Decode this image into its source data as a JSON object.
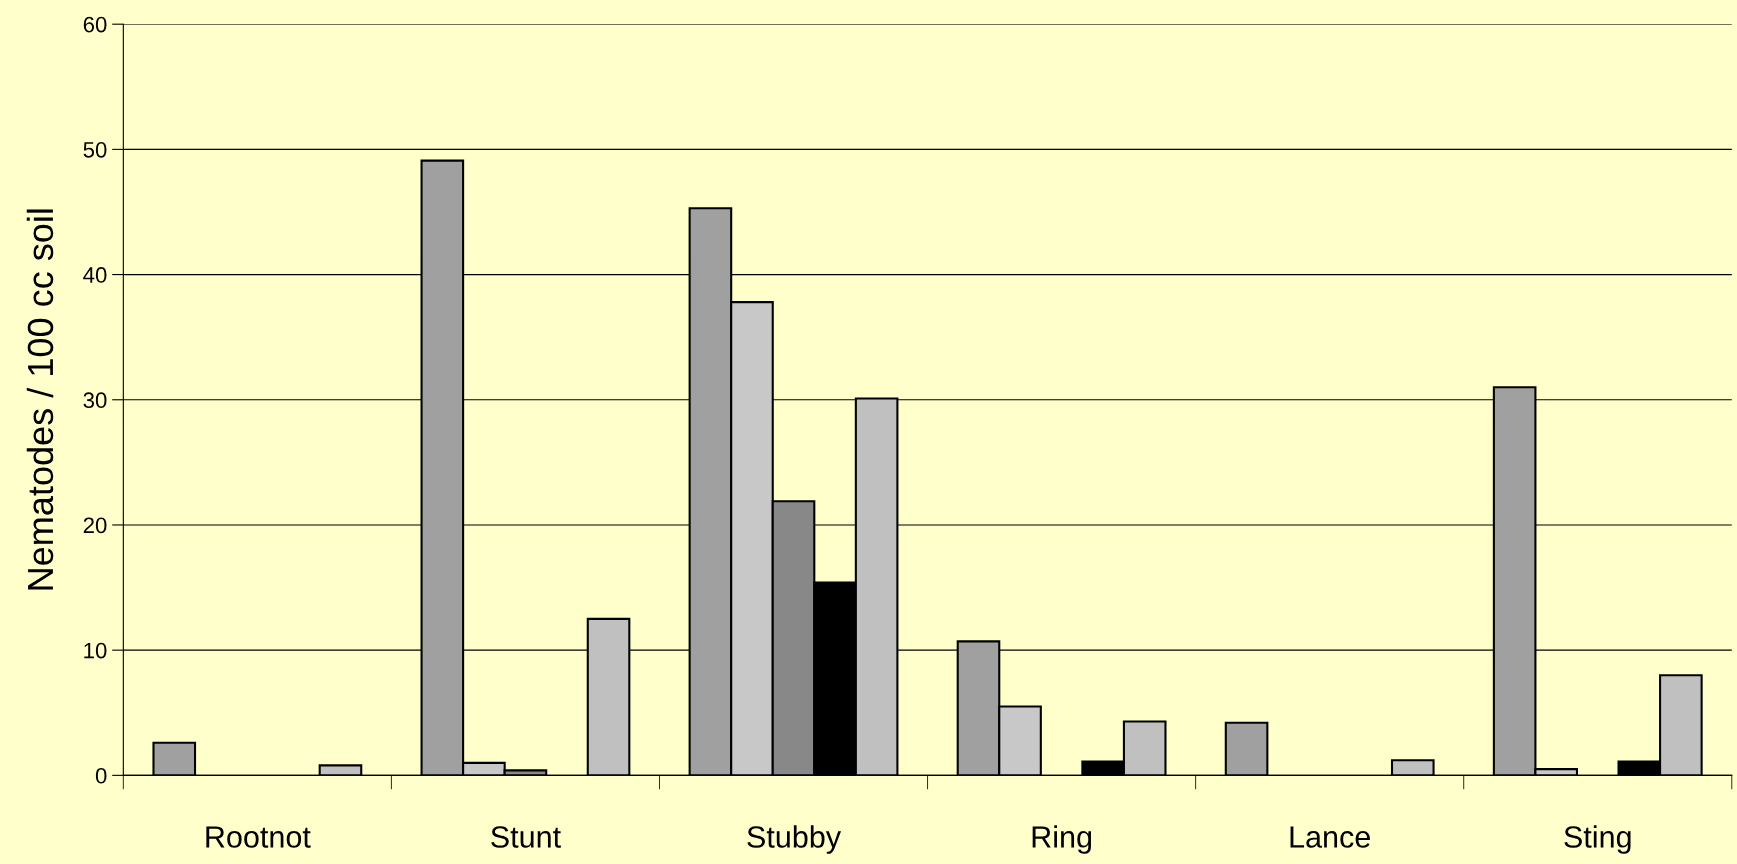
{
  "chart_data": {
    "type": "bar",
    "ylabel": "Nematodes / 100 cc soil",
    "categories": [
      "Rootnot",
      "Stunt",
      "Stubby",
      "Ring",
      "Lance",
      "Sting"
    ],
    "series": [
      {
        "color": "#a0a0a0",
        "values": [
          2.6,
          49.1,
          45.3,
          10.7,
          4.2,
          31.0
        ]
      },
      {
        "color": "#c8c8c8",
        "values": [
          null,
          1.0,
          37.8,
          5.5,
          null,
          0.5
        ]
      },
      {
        "color": "#888888",
        "values": [
          null,
          0.4,
          21.9,
          null,
          null,
          null
        ]
      },
      {
        "color": "#000000",
        "values": [
          null,
          null,
          15.4,
          1.1,
          null,
          1.1
        ]
      },
      {
        "color": "#c0c0c0",
        "values": [
          0.8,
          12.5,
          30.1,
          4.3,
          1.2,
          8.0
        ]
      }
    ],
    "ylim": [
      0,
      60
    ],
    "yticks": [
      0,
      10,
      20,
      30,
      40,
      50,
      60
    ],
    "grid": "y",
    "legend": false
  }
}
